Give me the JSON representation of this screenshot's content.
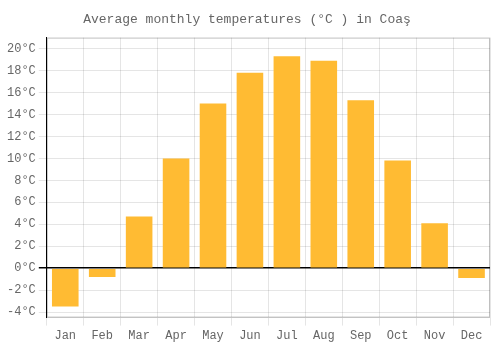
{
  "chart_data": {
    "type": "bar",
    "title": "Average monthly temperatures (°C ) in Coaş",
    "categories": [
      "Jan",
      "Feb",
      "Mar",
      "Apr",
      "May",
      "Jun",
      "Jul",
      "Aug",
      "Sep",
      "Oct",
      "Nov",
      "Dec"
    ],
    "values": [
      -3.5,
      -0.8,
      4.7,
      10.0,
      15.0,
      17.8,
      19.3,
      18.9,
      15.3,
      9.8,
      4.1,
      -0.9
    ],
    "color": "#FFBB33",
    "ylim": [
      -4.5,
      21
    ],
    "yticks": [
      {
        "value": -4,
        "label": "-4°C"
      },
      {
        "value": -2,
        "label": "-2°C"
      },
      {
        "value": 0,
        "label": "0°C"
      },
      {
        "value": 2,
        "label": "2°C"
      },
      {
        "value": 4,
        "label": "4°C"
      },
      {
        "value": 6,
        "label": "6°C"
      },
      {
        "value": 8,
        "label": "8°C"
      },
      {
        "value": 10,
        "label": "10°C"
      },
      {
        "value": 12,
        "label": "12°C"
      },
      {
        "value": 14,
        "label": "14°C"
      },
      {
        "value": 16,
        "label": "16°C"
      },
      {
        "value": 18,
        "label": "18°C"
      },
      {
        "value": 20,
        "label": "20°C"
      }
    ],
    "grid": true
  }
}
